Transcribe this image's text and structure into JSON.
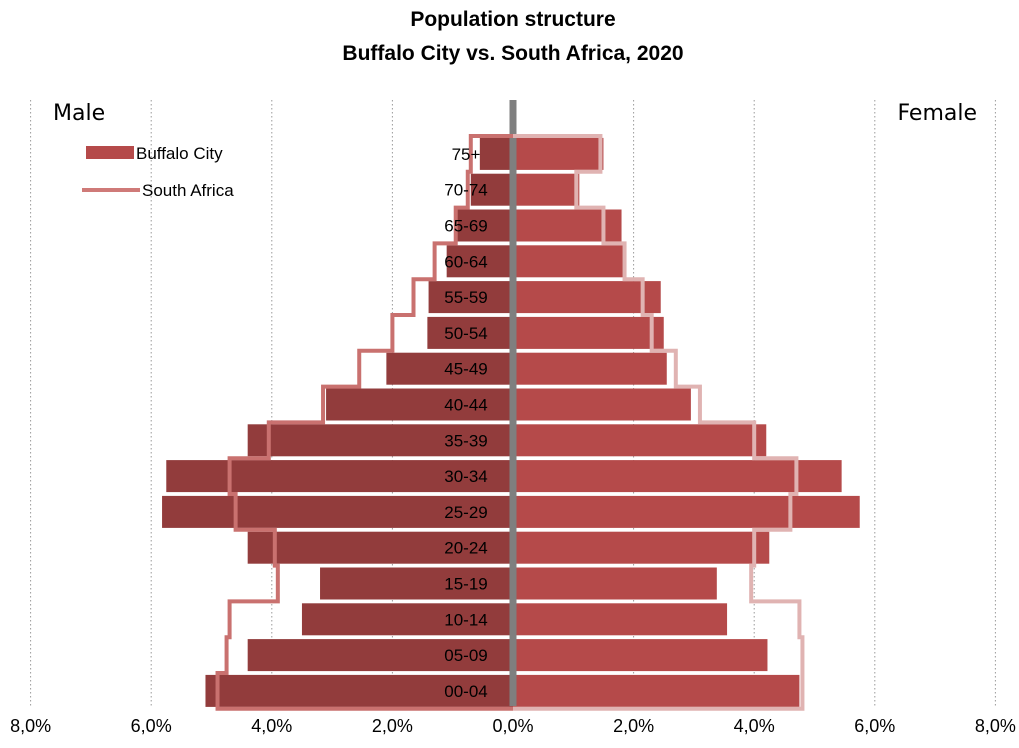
{
  "chart_data": {
    "type": "bar",
    "title": "Population structure",
    "subtitle": "Buffalo City vs. South Africa, 2020",
    "left_label": "Male",
    "right_label": "Female",
    "xlim": [
      -8,
      8
    ],
    "x_ticks": [
      {
        "value": -8,
        "label": "8,0%"
      },
      {
        "value": -6,
        "label": "6,0%"
      },
      {
        "value": -4,
        "label": "4,0%"
      },
      {
        "value": -2,
        "label": "2,0%"
      },
      {
        "value": 0,
        "label": "0,0%"
      },
      {
        "value": 2,
        "label": "2,0%"
      },
      {
        "value": 4,
        "label": "4,0%"
      },
      {
        "value": 6,
        "label": "6,0%"
      },
      {
        "value": 8,
        "label": "8,0%"
      }
    ],
    "categories": [
      "75+",
      "70-74",
      "65-69",
      "60-64",
      "55-59",
      "50-54",
      "45-49",
      "40-44",
      "35-39",
      "30-34",
      "25-29",
      "20-24",
      "15-19",
      "10-14",
      "05-09",
      "00-04"
    ],
    "series": [
      {
        "name": "Buffalo City",
        "kind": "bar",
        "male": [
          0.55,
          0.7,
          0.95,
          1.1,
          1.4,
          1.42,
          2.1,
          3.1,
          4.4,
          5.75,
          5.82,
          4.4,
          3.2,
          3.5,
          4.4,
          5.1
        ],
        "female": [
          1.5,
          1.1,
          1.8,
          1.85,
          2.45,
          2.5,
          2.55,
          2.95,
          4.2,
          5.45,
          5.75,
          4.25,
          3.38,
          3.55,
          4.22,
          4.75
        ]
      },
      {
        "name": "South Africa",
        "kind": "step-line",
        "male": [
          0.7,
          0.75,
          0.95,
          1.3,
          1.65,
          2.0,
          2.55,
          3.15,
          4.05,
          4.7,
          4.6,
          3.95,
          3.9,
          4.7,
          4.75,
          4.9
        ],
        "female": [
          1.45,
          1.05,
          1.5,
          1.85,
          2.15,
          2.3,
          2.7,
          3.1,
          4.0,
          4.7,
          4.6,
          4.0,
          3.95,
          4.75,
          4.8,
          4.8
        ]
      }
    ],
    "grid": true,
    "legend_position": "top-left",
    "colors": {
      "male_bar": "#923c3c",
      "female_bar": "#b54a4a",
      "male_line": "#c9716f",
      "female_line": "#e0b3b2",
      "axis": "#7f7f7f",
      "legend_bar": "#b54a4a",
      "legend_line": "#cf7a78"
    }
  }
}
